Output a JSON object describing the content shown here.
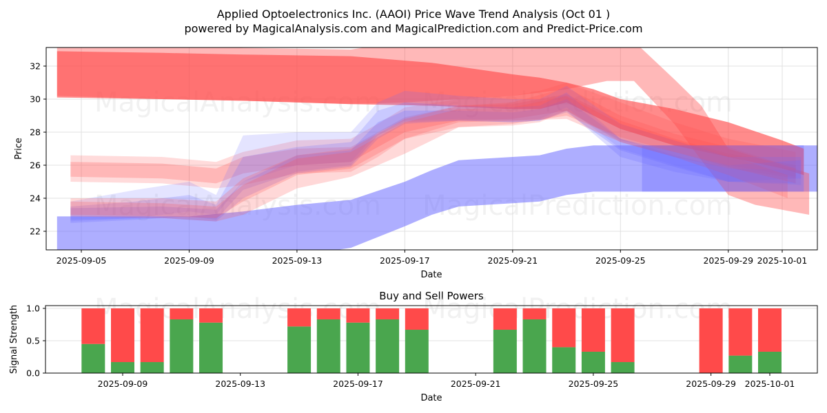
{
  "title_line1": "Applied Optoelectronics Inc. (AAOI) Price Wave Trend Analysis (Oct 01 )",
  "title_line2": "powered by MagicalAnalysis.com and MagicalPrediction.com and Predict-Price.com",
  "watermarks": [
    "MagicalAnalysis.com",
    "MagicalPrediction.com"
  ],
  "colors": {
    "buy": "#4aa64e",
    "sell": "#ff4a4a",
    "red_band": "#ff4d4d",
    "blue_band": "#6b6bff",
    "grid": "#e0e0e0"
  },
  "chart_data": [
    {
      "type": "area",
      "title": "",
      "xlabel": "Date",
      "ylabel": "Price",
      "x_origin_date": "2025-09-05",
      "xlim_days": [
        -1.3,
        27.5
      ],
      "ylim": [
        20.9,
        33.1
      ],
      "grid": true,
      "yticks": [
        22,
        24,
        26,
        28,
        30,
        32
      ],
      "xticks": [
        {
          "day": 0,
          "label": "2025-09-05"
        },
        {
          "day": 4,
          "label": "2025-09-09"
        },
        {
          "day": 8,
          "label": "2025-09-13"
        },
        {
          "day": 12,
          "label": "2025-09-17"
        },
        {
          "day": 16,
          "label": "2025-09-21"
        },
        {
          "day": 20,
          "label": "2025-09-25"
        },
        {
          "day": 24,
          "label": "2025-09-29"
        },
        {
          "day": 26,
          "label": "2025-10-01"
        }
      ],
      "series": [
        {
          "name": "blue-base-band",
          "color": "blue",
          "alpha": 0.55,
          "x": [
            -0.9,
            0.5,
            4,
            6,
            8,
            10,
            12,
            13,
            14,
            16,
            17,
            18,
            19,
            20,
            21,
            22,
            27.5
          ],
          "lower": [
            20.5,
            20.5,
            20.5,
            20.5,
            20.5,
            21.0,
            22.3,
            23.0,
            23.5,
            23.7,
            23.8,
            24.2,
            24.4,
            24.4,
            24.4,
            24.4,
            24.4
          ],
          "upper": [
            22.9,
            22.9,
            22.9,
            23.2,
            23.6,
            23.9,
            25.0,
            25.7,
            26.3,
            26.5,
            26.6,
            27.0,
            27.2,
            27.2,
            27.2,
            27.2,
            27.2
          ]
        },
        {
          "name": "red-top-band",
          "color": "red",
          "alpha": 0.65,
          "x": [
            -0.9,
            3,
            6,
            10,
            13,
            16,
            17,
            18,
            19,
            20,
            22,
            24,
            26,
            26.8
          ],
          "lower": [
            30.1,
            30.0,
            29.9,
            29.7,
            29.6,
            29.4,
            29.4,
            29.8,
            29.0,
            28.2,
            27.2,
            26.5,
            25.8,
            25.4
          ],
          "upper": [
            32.9,
            32.8,
            32.7,
            32.6,
            32.2,
            31.5,
            31.3,
            31.0,
            30.6,
            30.0,
            29.4,
            28.6,
            27.5,
            27.0
          ]
        },
        {
          "name": "red-wide-band",
          "color": "red",
          "alpha": 0.4,
          "x": [
            -0.9,
            3,
            6,
            10,
            12,
            16,
            18,
            19.5,
            20.5,
            22,
            23,
            24,
            25,
            26,
            27
          ],
          "lower": [
            30.2,
            30.0,
            29.9,
            29.7,
            29.8,
            30.2,
            30.6,
            31.1,
            31.1,
            28.5,
            26.3,
            24.2,
            23.6,
            23.3,
            23.0
          ],
          "upper": [
            33.5,
            33.3,
            33.1,
            33.0,
            33.5,
            33.6,
            33.6,
            33.5,
            33.5,
            31.2,
            29.6,
            27.0,
            26.5,
            26.0,
            25.5
          ]
        },
        {
          "name": "pink-upper-mid-band",
          "color": "red",
          "alpha": 0.2,
          "x": [
            -0.4,
            3,
            5,
            6,
            8,
            10,
            11,
            12,
            14,
            16,
            17,
            18,
            20,
            22,
            24,
            26.5
          ],
          "lower": [
            25.0,
            24.9,
            24.6,
            24.8,
            25.5,
            25.6,
            26.5,
            27.6,
            28.3,
            28.4,
            28.6,
            29.3,
            27.5,
            26.8,
            26.0,
            25.3
          ],
          "upper": [
            26.6,
            26.5,
            26.2,
            26.8,
            27.5,
            27.6,
            28.5,
            29.5,
            30.0,
            30.2,
            30.5,
            31.0,
            29.8,
            28.6,
            27.6,
            26.8
          ]
        },
        {
          "name": "pink-upper-mid-band-2",
          "color": "red",
          "alpha": 0.25,
          "x": [
            -0.4,
            3,
            5,
            6,
            8,
            10,
            12,
            14,
            16,
            18,
            20,
            22,
            24,
            26.5
          ],
          "lower": [
            25.3,
            25.2,
            24.9,
            25.5,
            26.0,
            26.2,
            28.0,
            28.7,
            28.8,
            29.3,
            27.4,
            26.5,
            25.8,
            25.2
          ],
          "upper": [
            26.2,
            26.1,
            25.8,
            26.5,
            27.0,
            27.1,
            28.9,
            29.6,
            29.7,
            30.3,
            28.7,
            27.6,
            26.7,
            26.0
          ]
        },
        {
          "name": "blue-mid-band-1",
          "color": "blue",
          "alpha": 0.18,
          "x": [
            -0.4,
            2,
            4,
            5,
            6,
            8,
            10,
            11,
            12,
            14,
            16,
            17,
            18,
            20,
            22,
            24,
            26.7
          ],
          "lower": [
            22.6,
            22.8,
            23.2,
            23.0,
            25.0,
            26.0,
            26.2,
            28.0,
            28.7,
            28.8,
            28.7,
            28.8,
            29.5,
            27.0,
            26.0,
            25.0,
            24.8
          ],
          "upper": [
            23.8,
            24.5,
            25.0,
            24.2,
            27.8,
            28.0,
            28.0,
            29.8,
            30.5,
            30.2,
            30.0,
            30.0,
            30.8,
            28.5,
            27.5,
            26.5,
            26.5
          ]
        },
        {
          "name": "blue-mid-band-2",
          "color": "blue",
          "alpha": 0.22,
          "x": [
            -0.4,
            2,
            4,
            5,
            6,
            8,
            10,
            11,
            12,
            14,
            16,
            17,
            18,
            20,
            22,
            24,
            26.7
          ],
          "lower": [
            22.5,
            22.7,
            22.9,
            22.7,
            24.5,
            25.6,
            26.0,
            27.8,
            28.6,
            28.7,
            28.6,
            28.7,
            29.3,
            26.5,
            25.6,
            25.0,
            25.2
          ],
          "upper": [
            23.5,
            23.8,
            24.2,
            23.6,
            26.5,
            27.1,
            27.4,
            29.3,
            29.8,
            29.6,
            29.5,
            29.6,
            30.4,
            27.6,
            26.8,
            26.0,
            26.3
          ]
        },
        {
          "name": "purple-mid-band",
          "color": "blue",
          "alpha": 0.25,
          "x": [
            -0.4,
            3,
            5,
            6,
            8,
            10,
            11,
            12,
            14,
            16,
            17,
            18,
            20,
            22,
            24,
            26.5
          ],
          "lower": [
            22.7,
            22.8,
            22.6,
            24.0,
            25.5,
            25.9,
            27.6,
            28.5,
            28.7,
            28.6,
            28.7,
            29.2,
            26.9,
            25.9,
            25.0,
            24.9
          ],
          "upper": [
            23.4,
            23.5,
            23.3,
            25.0,
            26.6,
            26.9,
            28.6,
            29.3,
            29.3,
            29.2,
            29.4,
            30.0,
            27.6,
            26.6,
            25.8,
            25.7
          ]
        },
        {
          "name": "red-mid-band-1",
          "color": "red",
          "alpha": 0.22,
          "x": [
            -0.4,
            3,
            5,
            6,
            8,
            10,
            12,
            14,
            16,
            18,
            20,
            22,
            24,
            26.5
          ],
          "lower": [
            22.9,
            22.8,
            22.6,
            23.0,
            24.6,
            25.3,
            26.7,
            28.3,
            28.5,
            29.0,
            27.7,
            26.8,
            25.9,
            24.9
          ],
          "upper": [
            24.0,
            24.0,
            23.8,
            25.2,
            26.6,
            27.0,
            28.8,
            29.6,
            29.8,
            30.7,
            29.0,
            27.9,
            27.1,
            25.8
          ]
        },
        {
          "name": "red-mid-band-2",
          "color": "red",
          "alpha": 0.22,
          "x": [
            -0.4,
            3,
            5,
            6,
            8,
            10,
            12,
            14,
            16,
            18,
            20,
            22,
            24,
            26.2
          ],
          "lower": [
            23.0,
            22.9,
            22.8,
            23.8,
            25.4,
            25.8,
            27.6,
            28.6,
            28.7,
            28.8,
            27.4,
            26.5,
            25.4,
            24.0
          ],
          "upper": [
            23.8,
            23.7,
            23.5,
            24.8,
            26.4,
            26.8,
            28.6,
            29.4,
            29.5,
            30.2,
            28.5,
            27.5,
            26.6,
            25.4
          ]
        },
        {
          "name": "blue-end-box",
          "color": "blue",
          "alpha": 0.35,
          "x": [
            20.8,
            22,
            24,
            25,
            26.8
          ],
          "lower": [
            24.4,
            24.4,
            24.4,
            24.4,
            24.4
          ],
          "upper": [
            27.2,
            27.2,
            27.2,
            27.2,
            27.2
          ]
        }
      ]
    },
    {
      "type": "bar",
      "title": "Buy and Sell Powers",
      "xlabel": "Date",
      "ylabel": "Signal Strength",
      "x_origin_date": "2025-09-05",
      "xlim_days": [
        -0.8,
        28.5
      ],
      "ylim": [
        0,
        1.05
      ],
      "grid": true,
      "yticks": [
        {
          "value": 0.0,
          "label": "0.0"
        },
        {
          "value": 0.5,
          "label": "0.5"
        },
        {
          "value": 1.0,
          "label": "1.0"
        }
      ],
      "xticks": [
        {
          "day": 4,
          "label": "2025-09-09"
        },
        {
          "day": 8,
          "label": "2025-09-13"
        },
        {
          "day": 12,
          "label": "2025-09-17"
        },
        {
          "day": 16,
          "label": "2025-09-21"
        },
        {
          "day": 20,
          "label": "2025-09-25"
        },
        {
          "day": 24,
          "label": "2025-09-29"
        },
        {
          "day": 26,
          "label": "2025-10-01"
        }
      ],
      "categories": [
        "2025-09-08",
        "2025-09-09",
        "2025-09-10",
        "2025-09-11",
        "2025-09-12",
        "2025-09-15",
        "2025-09-16",
        "2025-09-17",
        "2025-09-18",
        "2025-09-19",
        "2025-09-22",
        "2025-09-23",
        "2025-09-24",
        "2025-09-25",
        "2025-09-26",
        "2025-09-29",
        "2025-09-30",
        "2025-10-01"
      ],
      "days": [
        3,
        4,
        5,
        6,
        7,
        10,
        11,
        12,
        13,
        14,
        17,
        18,
        19,
        20,
        21,
        24,
        25,
        26
      ],
      "series": [
        {
          "name": "Buy",
          "color": "buy",
          "values": [
            0.45,
            0.17,
            0.17,
            0.83,
            0.78,
            0.72,
            0.83,
            0.78,
            0.83,
            0.67,
            0.67,
            0.83,
            0.4,
            0.33,
            0.17,
            0.0,
            0.27,
            0.33
          ]
        },
        {
          "name": "Sell",
          "color": "sell",
          "values": [
            0.55,
            0.83,
            0.83,
            0.17,
            0.22,
            0.28,
            0.17,
            0.22,
            0.17,
            0.33,
            0.33,
            0.17,
            0.6,
            0.67,
            0.83,
            1.0,
            0.73,
            0.67
          ]
        }
      ]
    }
  ]
}
